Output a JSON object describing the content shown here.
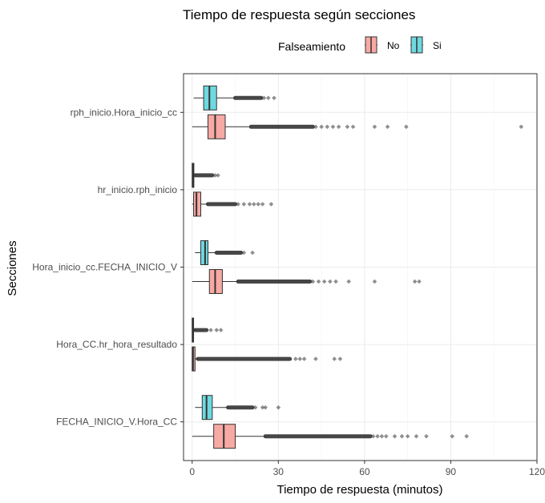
{
  "chart_data": {
    "type": "boxplot",
    "orientation": "horizontal",
    "title": "Tiempo de respuesta según secciones",
    "xlabel": "Tiempo de respuesta (minutos)",
    "ylabel": "Secciones",
    "xlim": [
      -3,
      120
    ],
    "x_ticks": [
      0,
      30,
      60,
      90,
      120
    ],
    "grid": true,
    "legend": {
      "title": "Falseamiento",
      "placement": "top",
      "entries": [
        {
          "label": "No",
          "color": "#F8A9A3"
        },
        {
          "label": "Si",
          "color": "#6ED9E0"
        }
      ]
    },
    "categories": [
      "rph_inicio.Hora_inicio_cc",
      "hr_inicio.rph_inicio",
      "Hora_inicio_cc.FECHA_INICIO_V",
      "Hora_CC.hr_hora_resultado",
      "FECHA_INICIO_V.Hora_CC"
    ],
    "series": [
      {
        "name": "No",
        "color": "#F8A9A3",
        "boxes": [
          {
            "min": 0,
            "q1": 5.5,
            "median": 8,
            "q3": 11.5,
            "max": 20.5,
            "outliers_dense": [
              20.5,
              42
            ],
            "outliers": [
              43,
              45,
              47,
              49,
              51,
              54,
              56,
              63.5,
              68,
              74.5,
              114.5
            ]
          },
          {
            "min": 0,
            "q1": 0.5,
            "median": 1.5,
            "q3": 3,
            "max": 5.5,
            "outliers_dense": [
              5.5,
              15
            ],
            "outliers": [
              16,
              18,
              20,
              21.5,
              23,
              24.5,
              27.5
            ]
          },
          {
            "min": 0,
            "q1": 6,
            "median": 8,
            "q3": 10.5,
            "max": 16,
            "outliers_dense": [
              16,
              41
            ],
            "outliers": [
              42,
              44,
              46,
              48,
              50,
              54.5,
              63.5,
              77.5,
              79
            ]
          },
          {
            "min": 0,
            "q1": 0,
            "median": 0.3,
            "q3": 1,
            "max": 2,
            "outliers_dense": [
              2,
              34
            ],
            "outliers": [
              36,
              37.5,
              39,
              43,
              49.5,
              51.5
            ]
          },
          {
            "min": 0,
            "q1": 7.5,
            "median": 11,
            "q3": 15,
            "max": 25.5,
            "outliers_dense": [
              25.5,
              62
            ],
            "outliers": [
              63,
              64.5,
              66,
              67.5,
              70.5,
              73,
              75,
              78,
              81.5,
              90.5,
              95.5
            ]
          }
        ]
      },
      {
        "name": "Si",
        "color": "#6ED9E0",
        "boxes": [
          {
            "min": 0.5,
            "q1": 4,
            "median": 6,
            "q3": 8.5,
            "max": 15,
            "outliers_dense": [
              15,
              24
            ],
            "outliers": [
              25,
              26.5,
              28.5
            ]
          },
          {
            "min": 0,
            "q1": 0,
            "median": 0.3,
            "q3": 0.6,
            "max": 1,
            "outliers_dense": [
              1,
              7
            ],
            "outliers": [
              8,
              9
            ]
          },
          {
            "min": 1,
            "q1": 3,
            "median": 4.5,
            "q3": 5.5,
            "max": 8.5,
            "outliers_dense": [
              8.5,
              17
            ],
            "outliers": [
              18,
              21
            ]
          },
          {
            "min": 0,
            "q1": 0,
            "median": 0.2,
            "q3": 0.5,
            "max": 1,
            "outliers_dense": [
              1,
              5
            ],
            "outliers": [
              6.5,
              8.5,
              10
            ]
          },
          {
            "min": 1,
            "q1": 3.5,
            "median": 5,
            "q3": 7,
            "max": 12.5,
            "outliers_dense": [
              12.5,
              21
            ],
            "outliers": [
              22,
              24.5,
              25.5,
              30
            ]
          }
        ]
      }
    ]
  }
}
